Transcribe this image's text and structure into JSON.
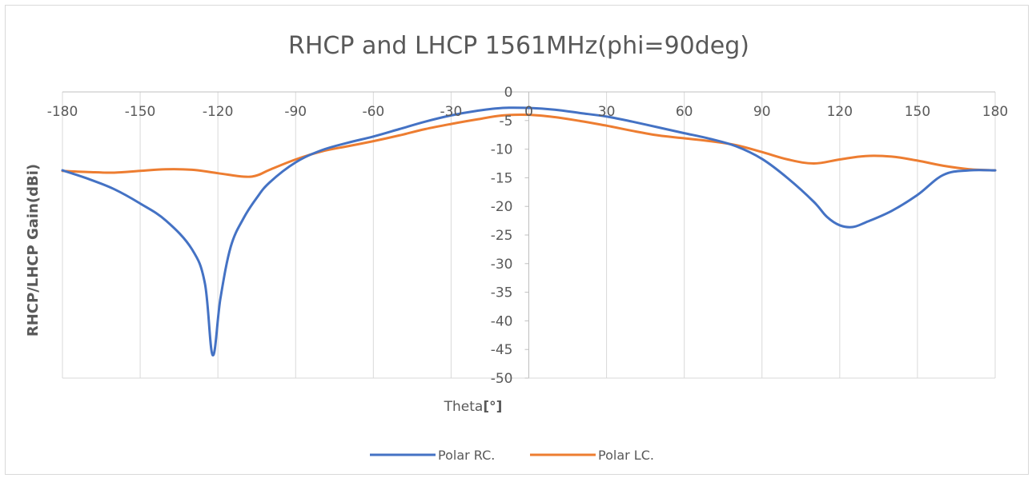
{
  "chart_data": {
    "type": "line",
    "title": "RHCP and LHCP 1561MHz(phi=90deg)",
    "xlabel_plain": "Theta",
    "xlabel_bold": "[°]",
    "ylabel": "RHCP/LHCP Gain(dBi)",
    "xlim": [
      -180,
      180
    ],
    "ylim": [
      -50,
      0
    ],
    "xticks": [
      -180,
      -150,
      -120,
      -90,
      -60,
      -30,
      0,
      30,
      60,
      90,
      120,
      150,
      180
    ],
    "yticks": [
      0,
      -5,
      -10,
      -15,
      -20,
      -25,
      -30,
      -35,
      -40,
      -45,
      -50
    ],
    "grid": "vertical",
    "legend_position": "bottom",
    "series": [
      {
        "name": "Polar RC.",
        "color": "#4472C4",
        "x": [
          -180,
          -170,
          -160,
          -150,
          -140,
          -130,
          -125,
          -122,
          -119,
          -115,
          -110,
          -105,
          -100,
          -90,
          -80,
          -70,
          -60,
          -50,
          -40,
          -30,
          -20,
          -10,
          0,
          10,
          20,
          30,
          40,
          50,
          60,
          70,
          80,
          90,
          100,
          110,
          115,
          120,
          125,
          130,
          140,
          150,
          160,
          170,
          180
        ],
        "y": [
          -13.7,
          -15.2,
          -17,
          -19.5,
          -22.5,
          -27.5,
          -33.5,
          -46,
          -36,
          -27,
          -22,
          -18.5,
          -15.8,
          -12.3,
          -10.2,
          -8.9,
          -7.8,
          -6.5,
          -5.2,
          -4.1,
          -3.3,
          -2.8,
          -2.8,
          -3.1,
          -3.7,
          -4.3,
          -5.2,
          -6.2,
          -7.2,
          -8.2,
          -9.5,
          -11.7,
          -15.1,
          -19.2,
          -21.8,
          -23.3,
          -23.6,
          -22.8,
          -20.8,
          -18,
          -14.5,
          -13.7,
          -13.7
        ]
      },
      {
        "name": "Polar LC.",
        "color": "#ED7D31",
        "x": [
          -180,
          -170,
          -160,
          -150,
          -140,
          -130,
          -120,
          -110,
          -105,
          -100,
          -90,
          -80,
          -70,
          -60,
          -50,
          -40,
          -30,
          -20,
          -10,
          0,
          10,
          20,
          30,
          40,
          50,
          60,
          70,
          80,
          90,
          100,
          110,
          120,
          130,
          140,
          150,
          160,
          170,
          180
        ],
        "y": [
          -13.8,
          -14,
          -14.1,
          -13.8,
          -13.5,
          -13.6,
          -14.2,
          -14.8,
          -14.6,
          -13.6,
          -11.8,
          -10.4,
          -9.5,
          -8.6,
          -7.6,
          -6.5,
          -5.6,
          -4.8,
          -4.1,
          -4,
          -4.4,
          -5.1,
          -5.9,
          -6.8,
          -7.6,
          -8.1,
          -8.6,
          -9.3,
          -10.5,
          -11.8,
          -12.5,
          -11.8,
          -11.2,
          -11.3,
          -12,
          -12.9,
          -13.5,
          -13.7
        ]
      }
    ]
  }
}
